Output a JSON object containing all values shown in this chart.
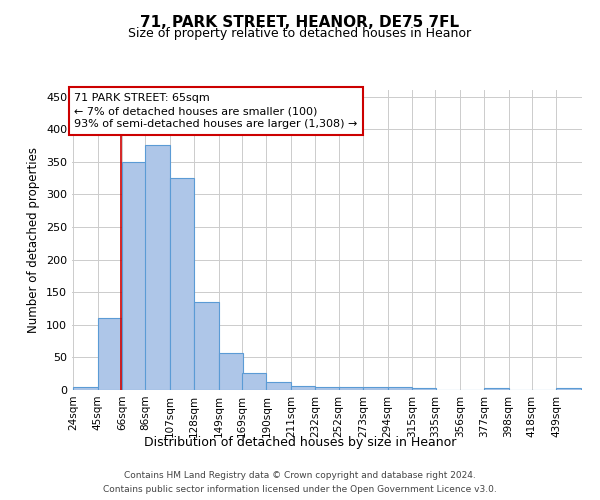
{
  "title_line1": "71, PARK STREET, HEANOR, DE75 7FL",
  "title_line2": "Size of property relative to detached houses in Heanor",
  "xlabel": "Distribution of detached houses by size in Heanor",
  "ylabel": "Number of detached properties",
  "categories": [
    "24sqm",
    "45sqm",
    "66sqm",
    "86sqm",
    "107sqm",
    "128sqm",
    "149sqm",
    "169sqm",
    "190sqm",
    "211sqm",
    "232sqm",
    "252sqm",
    "273sqm",
    "294sqm",
    "315sqm",
    "335sqm",
    "356sqm",
    "377sqm",
    "398sqm",
    "418sqm",
    "439sqm"
  ],
  "values": [
    5,
    110,
    350,
    375,
    325,
    135,
    57,
    26,
    12,
    6,
    5,
    5,
    5,
    5,
    3,
    0,
    0,
    3,
    0,
    0,
    3
  ],
  "bar_color": "#aec6e8",
  "bar_edge_color": "#5b9bd5",
  "grid_color": "#cccccc",
  "annotation_box_color": "#cc0000",
  "annotation_line1": "71 PARK STREET: 65sqm",
  "annotation_line2": "← 7% of detached houses are smaller (100)",
  "annotation_line3": "93% of semi-detached houses are larger (1,308) →",
  "property_line_x": 65,
  "ylim": [
    0,
    460
  ],
  "yticks": [
    0,
    50,
    100,
    150,
    200,
    250,
    300,
    350,
    400,
    450
  ],
  "footer_line1": "Contains HM Land Registry data © Crown copyright and database right 2024.",
  "footer_line2": "Contains public sector information licensed under the Open Government Licence v3.0.",
  "background_color": "#ffffff",
  "bin_width": 21,
  "title1_fontsize": 11,
  "title2_fontsize": 9,
  "ylabel_fontsize": 8.5,
  "xlabel_fontsize": 9,
  "tick_fontsize": 7.5,
  "annotation_fontsize": 8,
  "footer_fontsize": 6.5
}
